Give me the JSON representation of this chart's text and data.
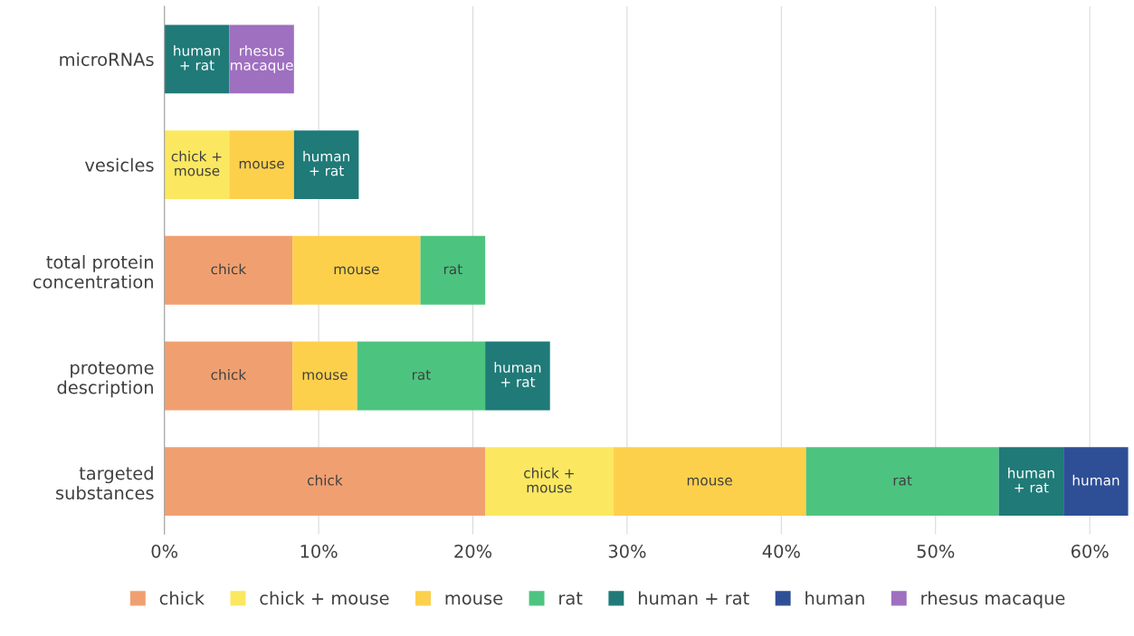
{
  "chart_data": {
    "type": "bar",
    "orientation": "horizontal",
    "stacked": true,
    "categories": [
      "microRNAs",
      "vesicles",
      "total protein\nconcentration",
      "proteome\ndescription",
      "targeted\nsubstances"
    ],
    "series": [
      {
        "name": "chick",
        "color": "#f0a070",
        "values": [
          null,
          null,
          8.3,
          8.3,
          20.8
        ],
        "value_labels": [
          null,
          null,
          "chick",
          "chick",
          "chick"
        ]
      },
      {
        "name": "chick + mouse",
        "color": "#fbe860",
        "values": [
          null,
          4.2,
          null,
          null,
          8.3
        ],
        "value_labels": [
          null,
          "chick +\nmouse",
          null,
          null,
          "chick +\nmouse"
        ]
      },
      {
        "name": "mouse",
        "color": "#fdd04c",
        "values": [
          null,
          4.2,
          8.3,
          4.2,
          12.5
        ],
        "value_labels": [
          null,
          "mouse",
          "mouse",
          "mouse",
          "mouse"
        ]
      },
      {
        "name": "rat",
        "color": "#4cc47f",
        "values": [
          null,
          null,
          4.2,
          8.3,
          12.5
        ],
        "value_labels": [
          null,
          null,
          "rat",
          "rat",
          "rat"
        ]
      },
      {
        "name": "human + rat",
        "color": "#1f7a78",
        "values": [
          4.2,
          4.2,
          null,
          4.2,
          4.2
        ],
        "value_labels": [
          "human\n+ rat",
          "human\n+ rat",
          null,
          "human\n+ rat",
          "human\n+ rat"
        ]
      },
      {
        "name": "human",
        "color": "#2e4f96",
        "values": [
          null,
          null,
          null,
          null,
          4.2
        ],
        "value_labels": [
          null,
          null,
          null,
          null,
          "human"
        ]
      },
      {
        "name": "rhesus macaque",
        "color": "#9f6fc0",
        "values": [
          4.2,
          null,
          null,
          null,
          null
        ],
        "value_labels": [
          "rhesus\nmacaque",
          null,
          null,
          null,
          null
        ]
      }
    ],
    "xlim": [
      0,
      62.5
    ],
    "xticks": [
      {
        "value": 0,
        "label": "0%"
      },
      {
        "value": 10,
        "label": "10%"
      },
      {
        "value": 20,
        "label": "20%"
      },
      {
        "value": 30,
        "label": "30%"
      },
      {
        "value": 40,
        "label": "40%"
      },
      {
        "value": 50,
        "label": "50%"
      },
      {
        "value": 60,
        "label": "60%"
      }
    ],
    "grid": "x",
    "legend": "bottom"
  }
}
